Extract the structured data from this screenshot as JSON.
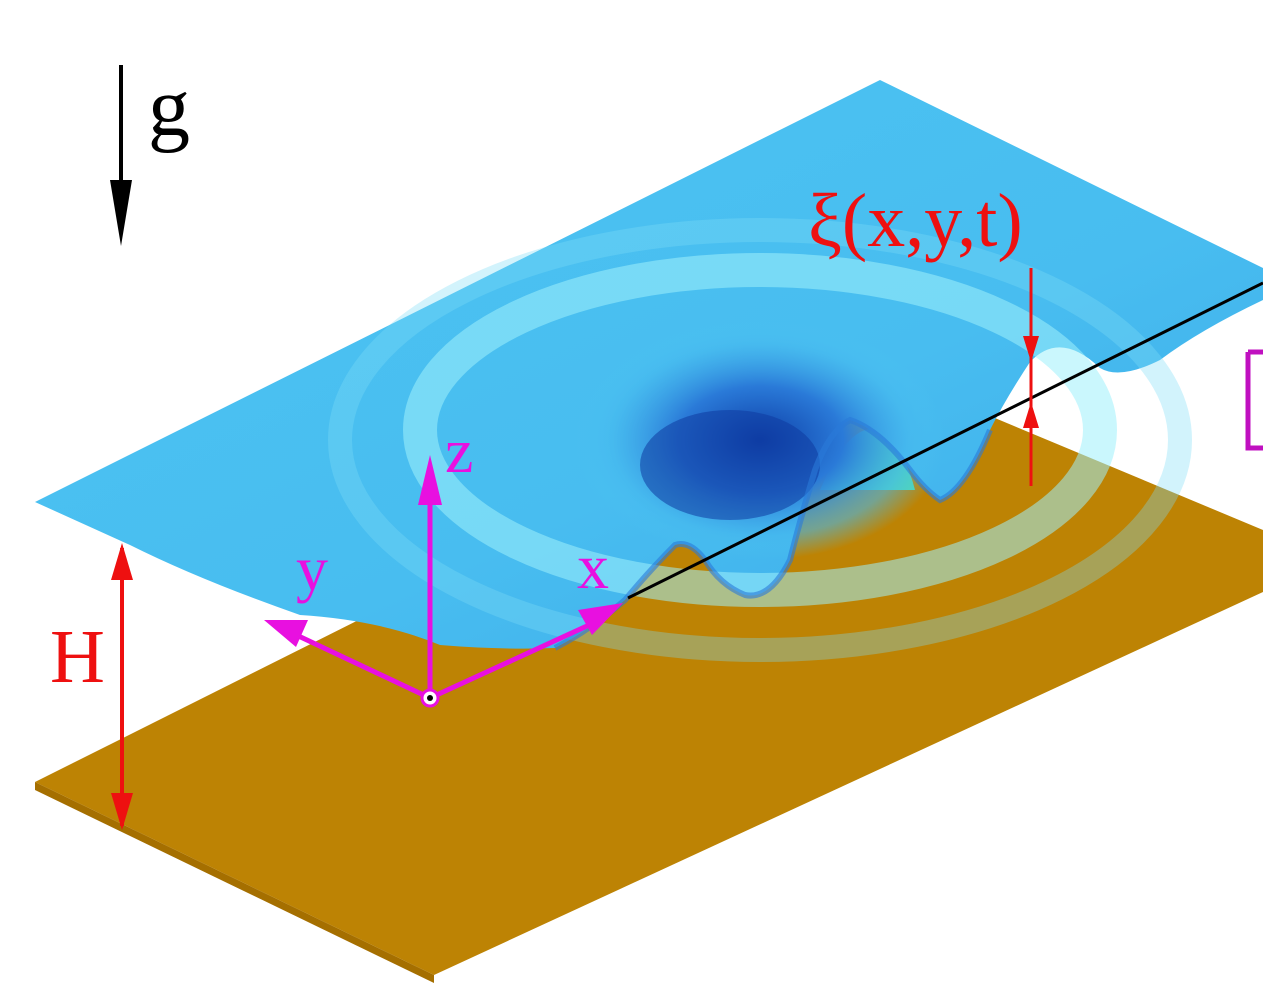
{
  "labels": {
    "gravity": "g",
    "elevation": "ξ(x,y,t)",
    "depth": "H",
    "axis_x": "x",
    "axis_y": "y",
    "axis_z": "z"
  },
  "colors": {
    "water": "#4cc4f2",
    "water_light": "#8fe4f8",
    "water_deep": "#1e5fc8",
    "wave_crest": "#50d8b0",
    "bottom": "#bd8304",
    "axes": "#e810e0",
    "dimension": "#ee1010",
    "gravity_arrow": "#000000"
  }
}
